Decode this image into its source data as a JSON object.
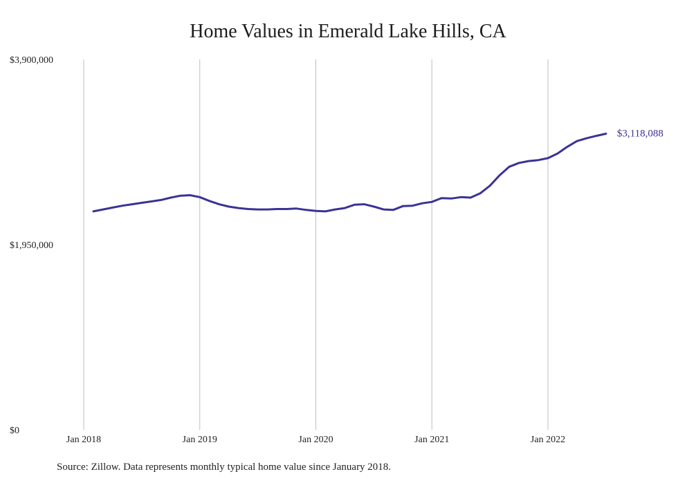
{
  "chart_data": {
    "type": "line",
    "title": "Home Values in Emerald Lake Hills, CA",
    "y_tick_labels": [
      "$0",
      "$1,950,000",
      "$3,900,000"
    ],
    "y_ticks": [
      0,
      1950000,
      3900000
    ],
    "ylim": [
      0,
      3900000
    ],
    "x_tick_labels": [
      "Jan 2018",
      "Jan 2019",
      "Jan 2020",
      "Jan 2021",
      "Jan 2022"
    ],
    "x_ticks": [
      "2018-01",
      "2019-01",
      "2020-01",
      "2021-01",
      "2022-01"
    ],
    "x_range": [
      "2018-01",
      "2022-08"
    ],
    "grid": "vertical",
    "line_color": "#3a3296",
    "end_label": "$3,118,088",
    "series": [
      {
        "x": [
          "2018-02",
          "2018-03",
          "2018-04",
          "2018-05",
          "2018-06",
          "2018-07",
          "2018-08",
          "2018-09",
          "2018-10",
          "2018-11",
          "2018-12",
          "2019-01",
          "2019-02",
          "2019-03",
          "2019-04",
          "2019-05",
          "2019-06",
          "2019-07",
          "2019-08",
          "2019-09",
          "2019-10",
          "2019-11",
          "2019-12",
          "2020-01",
          "2020-02",
          "2020-03",
          "2020-04",
          "2020-05",
          "2020-06",
          "2020-07",
          "2020-08",
          "2020-09",
          "2020-10",
          "2020-11",
          "2020-12",
          "2021-01",
          "2021-02",
          "2021-03",
          "2021-04",
          "2021-05",
          "2021-06",
          "2021-07",
          "2021-08",
          "2021-09",
          "2021-10",
          "2021-11",
          "2021-12",
          "2022-01",
          "2022-02",
          "2022-03",
          "2022-04",
          "2022-05",
          "2022-06",
          "2022-07"
        ],
        "values": [
          2300000,
          2320000,
          2340000,
          2360000,
          2375000,
          2390000,
          2405000,
          2420000,
          2445000,
          2465000,
          2470000,
          2450000,
          2410000,
          2375000,
          2350000,
          2335000,
          2325000,
          2320000,
          2320000,
          2325000,
          2325000,
          2330000,
          2315000,
          2305000,
          2300000,
          2320000,
          2335000,
          2370000,
          2375000,
          2350000,
          2320000,
          2315000,
          2355000,
          2360000,
          2385000,
          2400000,
          2440000,
          2435000,
          2450000,
          2445000,
          2490000,
          2570000,
          2680000,
          2770000,
          2810000,
          2830000,
          2840000,
          2860000,
          2910000,
          2980000,
          3040000,
          3070000,
          3095000,
          3118088
        ]
      }
    ]
  },
  "source_note": "Source: Zillow. Data represents monthly typical home value since January 2018."
}
